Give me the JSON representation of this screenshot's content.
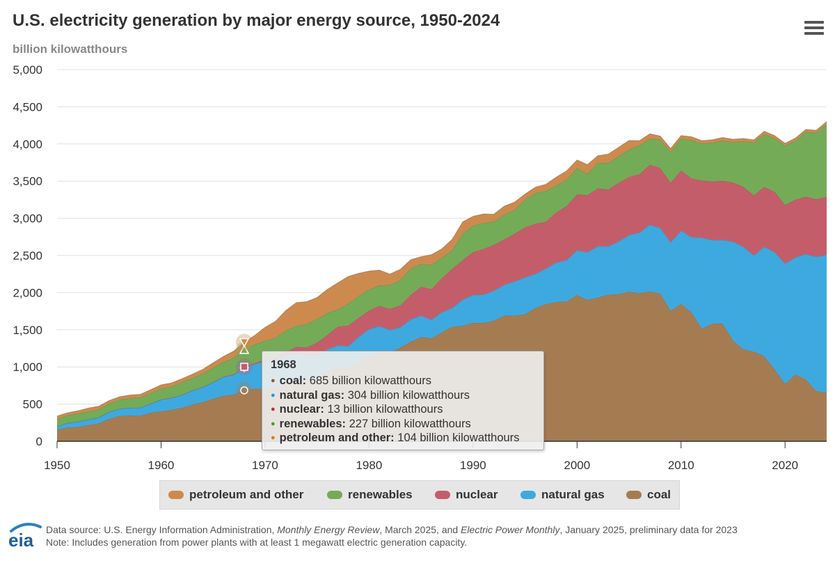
{
  "header": {
    "title": "U.S. electricity generation by major energy source, 1950-2024",
    "units": "billion kilowatthours"
  },
  "menu_icon": "hamburger-menu-icon",
  "chart_data": {
    "type": "area",
    "stacked": true,
    "title": "U.S. electricity generation by major energy source, 1950-2024",
    "ylabel": "billion kilowatthours",
    "xlabel": "",
    "xlim": [
      1950,
      2024
    ],
    "ylim": [
      0,
      5000
    ],
    "yticks": [
      "0",
      "500",
      "1,000",
      "1,500",
      "2,000",
      "2,500",
      "3,000",
      "3,500",
      "4,000",
      "4,500",
      "5,000"
    ],
    "ytick_values": [
      0,
      500,
      1000,
      1500,
      2000,
      2500,
      3000,
      3500,
      4000,
      4500,
      5000
    ],
    "xticks": [
      "1950",
      "1960",
      "1970",
      "1980",
      "1990",
      "2000",
      "2010",
      "2020"
    ],
    "xtick_values": [
      1950,
      1960,
      1970,
      1980,
      1990,
      2000,
      2010,
      2020
    ],
    "grid": true,
    "legend_position": "bottom-center",
    "x": [
      1950,
      1951,
      1952,
      1953,
      1954,
      1955,
      1956,
      1957,
      1958,
      1959,
      1960,
      1961,
      1962,
      1963,
      1964,
      1965,
      1966,
      1967,
      1968,
      1969,
      1970,
      1971,
      1972,
      1973,
      1974,
      1975,
      1976,
      1977,
      1978,
      1979,
      1980,
      1981,
      1982,
      1983,
      1984,
      1985,
      1986,
      1987,
      1988,
      1989,
      1990,
      1991,
      1992,
      1993,
      1994,
      1995,
      1996,
      1997,
      1998,
      1999,
      2000,
      2001,
      2002,
      2003,
      2004,
      2005,
      2006,
      2007,
      2008,
      2009,
      2010,
      2011,
      2012,
      2013,
      2014,
      2015,
      2016,
      2017,
      2018,
      2019,
      2020,
      2021,
      2022,
      2023,
      2024
    ],
    "series": [
      {
        "name": "coal",
        "color": "#a57c52",
        "values": [
          155,
          185,
          195,
          217,
          240,
          301,
          339,
          346,
          345,
          385,
          403,
          422,
          450,
          494,
          526,
          571,
          613,
          630,
          685,
          706,
          704,
          713,
          771,
          848,
          828,
          853,
          944,
          985,
          976,
          1075,
          1162,
          1203,
          1192,
          1259,
          1342,
          1402,
          1386,
          1464,
          1541,
          1554,
          1594,
          1592,
          1621,
          1690,
          1691,
          1709,
          1796,
          1845,
          1874,
          1881,
          1966,
          1904,
          1933,
          1974,
          1978,
          2013,
          1991,
          2016,
          1986,
          1756,
          1847,
          1733,
          1514,
          1581,
          1582,
          1352,
          1239,
          1206,
          1146,
          965,
          773,
          898,
          832,
          675,
          653
        ]
      },
      {
        "name": "natural gas",
        "color": "#3ea9df",
        "values": [
          45,
          60,
          69,
          76,
          80,
          94,
          99,
          104,
          106,
          120,
          158,
          162,
          173,
          188,
          201,
          222,
          251,
          265,
          304,
          333,
          373,
          371,
          376,
          341,
          320,
          300,
          295,
          306,
          305,
          329,
          346,
          346,
          305,
          274,
          297,
          292,
          249,
          273,
          253,
          352,
          373,
          382,
          404,
          415,
          460,
          496,
          455,
          479,
          531,
          556,
          601,
          639,
          691,
          649,
          710,
          761,
          816,
          897,
          883,
          921,
          988,
          1014,
          1226,
          1125,
          1126,
          1333,
          1378,
          1296,
          1469,
          1582,
          1617,
          1576,
          1687,
          1806,
          1854
        ]
      },
      {
        "name": "nuclear",
        "color": "#c45d6a",
        "values": [
          0,
          0,
          0,
          0,
          0,
          0,
          0,
          0,
          0,
          1,
          1,
          2,
          2,
          3,
          3,
          4,
          6,
          8,
          13,
          14,
          22,
          38,
          54,
          83,
          114,
          173,
          191,
          251,
          276,
          255,
          251,
          273,
          283,
          294,
          328,
          384,
          414,
          455,
          527,
          529,
          577,
          613,
          619,
          610,
          640,
          673,
          675,
          629,
          674,
          728,
          754,
          769,
          780,
          764,
          789,
          782,
          787,
          806,
          806,
          799,
          807,
          790,
          769,
          789,
          797,
          797,
          806,
          805,
          807,
          809,
          790,
          778,
          772,
          775,
          782
        ]
      },
      {
        "name": "renewables",
        "color": "#74ab57",
        "values": [
          100,
          104,
          109,
          110,
          110,
          113,
          122,
          130,
          141,
          141,
          149,
          152,
          168,
          166,
          180,
          194,
          195,
          222,
          227,
          250,
          251,
          272,
          285,
          280,
          316,
          319,
          295,
          232,
          296,
          298,
          285,
          275,
          323,
          342,
          356,
          306,
          325,
          280,
          250,
          358,
          357,
          350,
          311,
          336,
          322,
          374,
          413,
          413,
          365,
          356,
          354,
          287,
          344,
          357,
          358,
          368,
          386,
          353,
          381,
          418,
          431,
          517,
          496,
          521,
          540,
          544,
          613,
          711,
          706,
          722,
          796,
          792,
          872,
          894,
          978
        ]
      },
      {
        "name": "petroleum and other",
        "color": "#cd8a4e",
        "values": [
          40,
          35,
          38,
          45,
          42,
          40,
          39,
          43,
          40,
          48,
          48,
          48,
          49,
          52,
          57,
          65,
          77,
          89,
          104,
          121,
          184,
          220,
          274,
          314,
          301,
          289,
          320,
          358,
          365,
          303,
          246,
          206,
          147,
          144,
          120,
          100,
          137,
          118,
          148,
          158,
          126,
          121,
          100,
          113,
          105,
          74,
          81,
          92,
          110,
          118,
          111,
          124,
          95,
          119,
          121,
          123,
          64,
          66,
          50,
          45,
          40,
          43,
          40,
          40,
          42,
          38,
          38,
          37,
          43,
          34,
          33,
          36,
          33,
          34,
          35
        ]
      }
    ]
  },
  "tooltip": {
    "year": "1968",
    "rows": [
      {
        "label": "coal:",
        "value": "685 billion kilowatthours",
        "color": "#8a5a2e"
      },
      {
        "label": "natural gas:",
        "value": "304 billion kilowatthours",
        "color": "#1e9ad6"
      },
      {
        "label": "nuclear:",
        "value": "13 billion kilowatthours",
        "color": "#b5303f"
      },
      {
        "label": "renewables:",
        "value": "227 billion kilowatthours",
        "color": "#4d9a2e"
      },
      {
        "label": "petroleum and other:",
        "value": "104 billion kilowatthours",
        "color": "#d27a2a"
      }
    ]
  },
  "legend": {
    "items": [
      {
        "label": "petroleum and other",
        "color": "#cd8a4e"
      },
      {
        "label": "renewables",
        "color": "#74ab57"
      },
      {
        "label": "nuclear",
        "color": "#c45d6a"
      },
      {
        "label": "natural gas",
        "color": "#3ea9df"
      },
      {
        "label": "coal",
        "color": "#a57c52"
      }
    ]
  },
  "footer": {
    "logo_text": "eia",
    "source_prefix": "Data source: U.S. Energy Information Administration, ",
    "source_pub1": "Monthly Energy Review",
    "source_mid": ", March 2025, and ",
    "source_pub2": "Electric Power Monthly",
    "source_suffix": ", January 2025, preliminary data for 2023",
    "note": "Note: Includes generation from power plants with at least 1 megawatt electric generation capacity."
  }
}
